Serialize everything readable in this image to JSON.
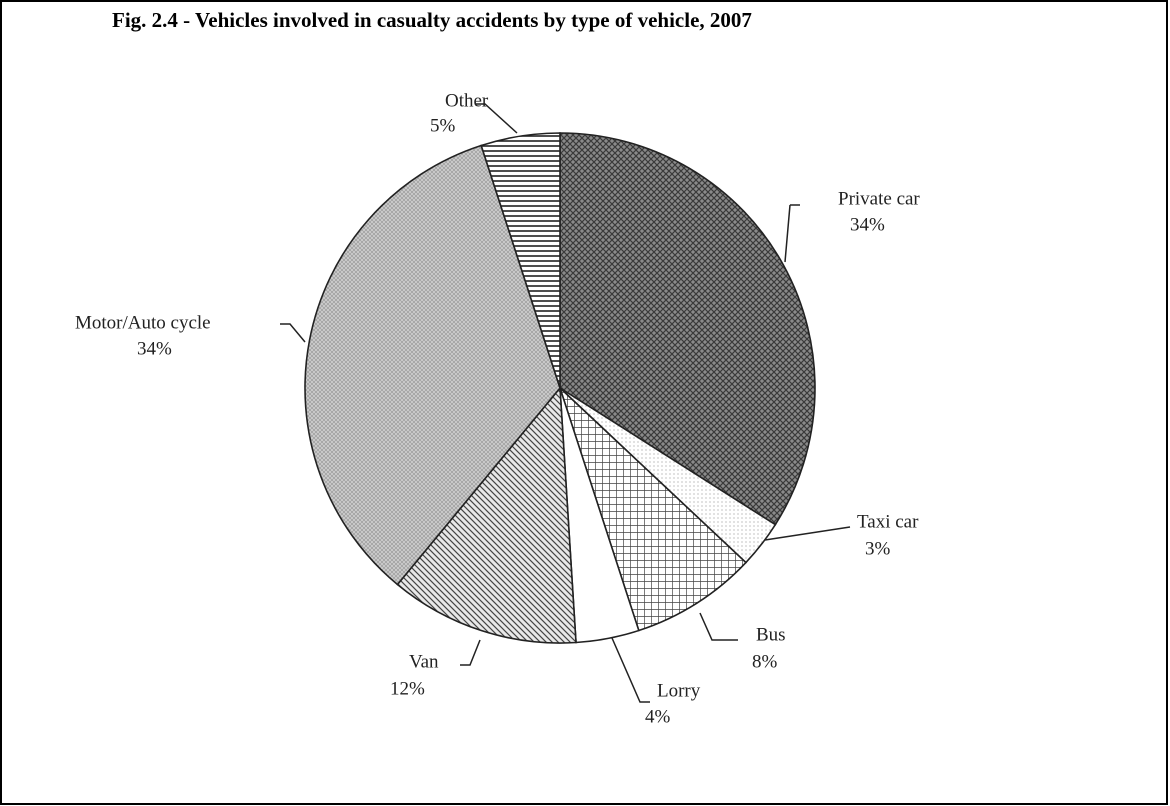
{
  "chart_data": {
    "type": "pie",
    "title": "Fig. 2.4 - Vehicles involved in casualty accidents by type of vehicle, 2007",
    "categories": [
      "Private car",
      "Taxi car",
      "Bus",
      "Lorry",
      "Van",
      "Motor/Auto cycle",
      "Other"
    ],
    "values": [
      34,
      3,
      8,
      4,
      12,
      34,
      5
    ],
    "value_labels": [
      "34%",
      "3%",
      "8%",
      "4%",
      "12%",
      "34%",
      "5%"
    ]
  }
}
